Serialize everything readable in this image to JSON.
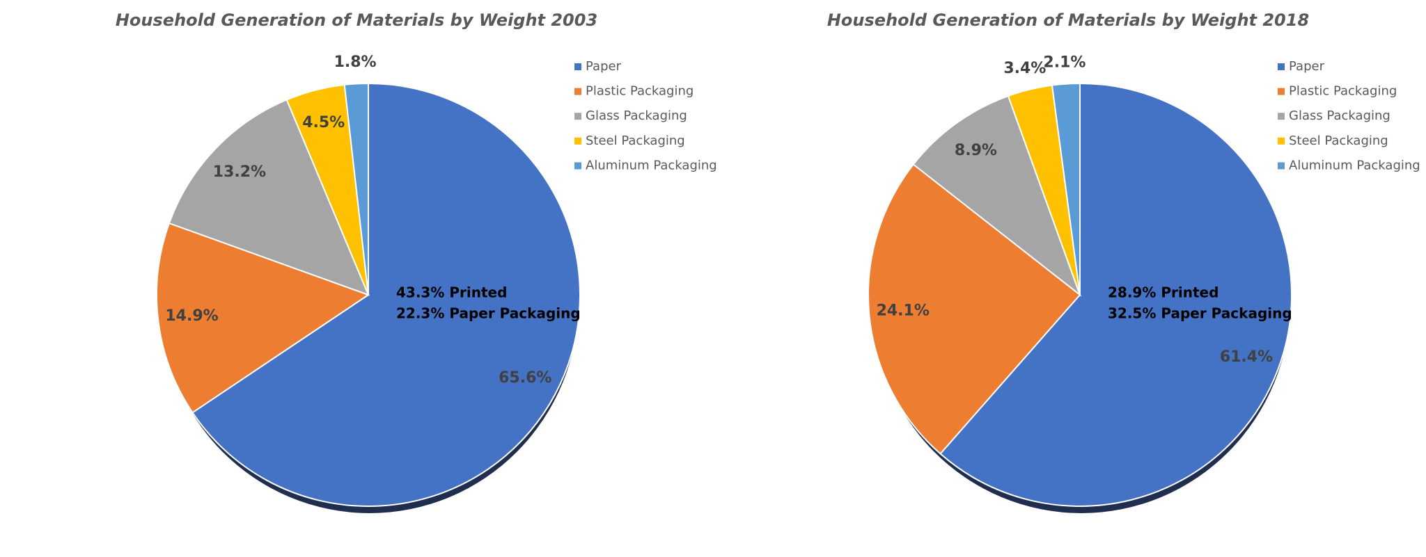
{
  "chart_data": [
    {
      "type": "pie",
      "title": "Household Generation of Materials by Weight 2003",
      "categories": [
        "Paper",
        "Plastic Packaging",
        "Glass Packaging",
        "Steel Packaging",
        "Aluminum Packaging"
      ],
      "values": [
        65.6,
        14.9,
        13.2,
        4.5,
        1.8
      ],
      "value_labels": [
        "65.6%",
        "14.9%",
        "13.2%",
        "4.5%",
        "1.8%"
      ],
      "colors": [
        "#4472c4",
        "#ed7d31",
        "#a5a5a5",
        "#ffc000",
        "#5b9bd5"
      ],
      "annotations": [
        "43.3% Printed",
        "22.3% Paper Packaging"
      ],
      "legend": "right"
    },
    {
      "type": "pie",
      "title": "Household Generation of Materials by Weight 2018",
      "categories": [
        "Paper",
        "Plastic Packaging",
        "Glass Packaging",
        "Steel Packaging",
        "Aluminum Packaging"
      ],
      "values": [
        61.4,
        24.1,
        8.9,
        3.4,
        2.1
      ],
      "value_labels": [
        "61.4%",
        "24.1%",
        "8.9%",
        "3.4%",
        "2.1%"
      ],
      "colors": [
        "#4472c4",
        "#ed7d31",
        "#a5a5a5",
        "#ffc000",
        "#5b9bd5"
      ],
      "annotations": [
        "28.9% Printed",
        "32.5% Paper Packaging"
      ],
      "legend": "right"
    }
  ]
}
